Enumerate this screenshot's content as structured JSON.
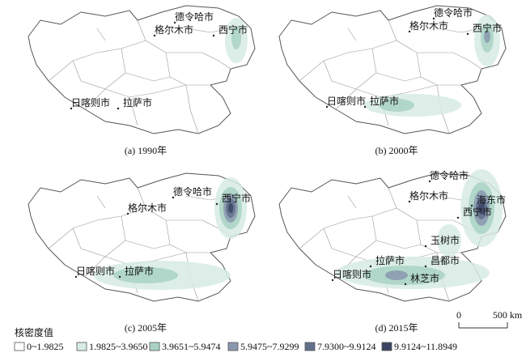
{
  "panels": [
    {
      "caption": "(a) 1990年",
      "cities": [
        {
          "label": "德令哈市"
        },
        {
          "label": "格尔木市"
        },
        {
          "label": "西宁市"
        },
        {
          "label": "日喀则市"
        },
        {
          "label": "拉萨市"
        }
      ]
    },
    {
      "caption": "(b) 2000年",
      "cities": [
        {
          "label": "德令哈市"
        },
        {
          "label": "格尔木市"
        },
        {
          "label": "西宁市"
        },
        {
          "label": "日喀则市"
        },
        {
          "label": "拉萨市"
        }
      ]
    },
    {
      "caption": "(c) 2005年",
      "cities": [
        {
          "label": "德令哈市"
        },
        {
          "label": "西宁市"
        },
        {
          "label": "格尔木市"
        },
        {
          "label": "日喀则市"
        },
        {
          "label": "拉萨市"
        }
      ]
    },
    {
      "caption": "(d) 2015年",
      "cities": [
        {
          "label": "德令哈市"
        },
        {
          "label": "格尔木市"
        },
        {
          "label": "海东市"
        },
        {
          "label": "西宁市"
        },
        {
          "label": "玉树市"
        },
        {
          "label": "拉萨市"
        },
        {
          "label": "昌都市"
        },
        {
          "label": "日喀则市"
        },
        {
          "label": "林芝市"
        }
      ]
    }
  ],
  "legend": {
    "title": "核密度值",
    "classes": [
      {
        "label": "0~1.9825",
        "color": "#ffffff"
      },
      {
        "label": "1.9825~3.9650",
        "color": "#d6ebe3"
      },
      {
        "label": "3.9651~5.9474",
        "color": "#a9d2c4"
      },
      {
        "label": "5.9475~7.9299",
        "color": "#8a98ae"
      },
      {
        "label": "7.9300~9.9124",
        "color": "#626f8c"
      },
      {
        "label": "9.9124~11.8949",
        "color": "#3b4563"
      }
    ]
  },
  "scale_bar": {
    "start": "0",
    "end": "500 km"
  }
}
